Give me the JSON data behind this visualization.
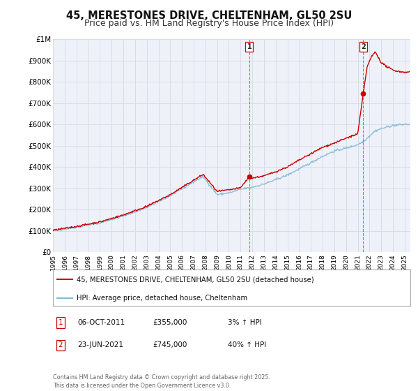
{
  "title": "45, MERESTONES DRIVE, CHELTENHAM, GL50 2SU",
  "subtitle": "Price paid vs. HM Land Registry's House Price Index (HPI)",
  "title_fontsize": 10.5,
  "subtitle_fontsize": 9,
  "bg_color": "#ffffff",
  "plot_bg_color": "#eef2f8",
  "grid_color": "#d8dce8",
  "red_line_color": "#cc0000",
  "blue_line_color": "#88b8d8",
  "marker1_date_x": 2011.75,
  "marker1_y": 355000,
  "marker2_date_x": 2021.47,
  "marker2_y": 745000,
  "vline1_x": 2011.75,
  "vline2_x": 2021.47,
  "xmin": 1995,
  "xmax": 2025.5,
  "ymin": 0,
  "ymax": 1000000,
  "yticks": [
    0,
    100000,
    200000,
    300000,
    400000,
    500000,
    600000,
    700000,
    800000,
    900000,
    1000000
  ],
  "ytick_labels": [
    "£0",
    "£100K",
    "£200K",
    "£300K",
    "£400K",
    "£500K",
    "£600K",
    "£700K",
    "£800K",
    "£900K",
    "£1M"
  ],
  "xticks": [
    1995,
    1996,
    1997,
    1998,
    1999,
    2000,
    2001,
    2002,
    2003,
    2004,
    2005,
    2006,
    2007,
    2008,
    2009,
    2010,
    2011,
    2012,
    2013,
    2014,
    2015,
    2016,
    2017,
    2018,
    2019,
    2020,
    2021,
    2022,
    2023,
    2024,
    2025
  ],
  "legend_label_red": "45, MERESTONES DRIVE, CHELTENHAM, GL50 2SU (detached house)",
  "legend_label_blue": "HPI: Average price, detached house, Cheltenham",
  "annotation1_label": "1",
  "annotation1_date": "06-OCT-2011",
  "annotation1_price": "£355,000",
  "annotation1_hpi": "3% ↑ HPI",
  "annotation2_label": "2",
  "annotation2_date": "23-JUN-2021",
  "annotation2_price": "£745,000",
  "annotation2_hpi": "40% ↑ HPI",
  "footer": "Contains HM Land Registry data © Crown copyright and database right 2025.\nThis data is licensed under the Open Government Licence v3.0."
}
